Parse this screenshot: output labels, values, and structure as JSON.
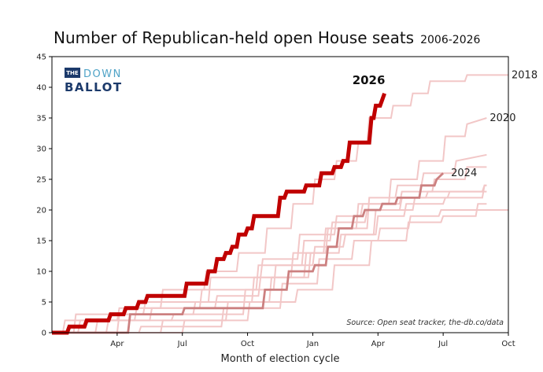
{
  "chart_data": {
    "type": "line",
    "title": "Number of Republican-held open House seats",
    "subtitle": "2006-2026",
    "xlabel": "Month of election cycle",
    "ylabel": "",
    "ylim": [
      0,
      45
    ],
    "yticks": [
      0,
      5,
      10,
      15,
      20,
      25,
      30,
      35,
      40,
      45
    ],
    "xlim": [
      0,
      21
    ],
    "xticks": [
      {
        "month": 3,
        "label": "Apr"
      },
      {
        "month": 6,
        "label": "Jul"
      },
      {
        "month": 9,
        "label": "Oct"
      },
      {
        "month": 12,
        "label": "Jan"
      },
      {
        "month": 15,
        "label": "Apr"
      },
      {
        "month": 18,
        "label": "Jul"
      },
      {
        "month": 21,
        "label": "Oct"
      }
    ],
    "grid": false,
    "source": "Source: Open seat tracker, the-db.co/data",
    "logo": {
      "the": "THE",
      "down": "DOWN",
      "ballot": "BALLOT"
    },
    "colors": {
      "highlight": "#c00000",
      "secondary": "#cc8080",
      "background_series": "#f2c7c7",
      "axis": "#000000"
    },
    "series": [
      {
        "name": "2026",
        "role": "highlight",
        "label": "2026",
        "x": [
          0,
          0.7,
          0.8,
          1.5,
          1.6,
          2.6,
          2.7,
          3.3,
          3.4,
          3.9,
          4.0,
          4.3,
          4.4,
          6.1,
          6.2,
          7.1,
          7.2,
          7.5,
          7.6,
          7.9,
          8.0,
          8.2,
          8.3,
          8.5,
          8.6,
          8.9,
          9.0,
          9.2,
          9.3,
          10.4,
          10.5,
          10.7,
          10.8,
          11.6,
          11.7,
          12.3,
          12.4,
          12.9,
          13.0,
          13.3,
          13.4,
          13.6,
          13.7,
          14.6,
          14.7,
          14.8,
          14.9,
          15.1,
          15.2,
          15.3
        ],
        "y": [
          0,
          0,
          1,
          1,
          2,
          2,
          3,
          3,
          4,
          4,
          5,
          5,
          6,
          6,
          8,
          8,
          10,
          10,
          12,
          12,
          13,
          13,
          14,
          14,
          16,
          16,
          17,
          17,
          19,
          19,
          22,
          22,
          23,
          23,
          24,
          24,
          26,
          26,
          27,
          27,
          28,
          28,
          31,
          31,
          35,
          35,
          37,
          37,
          38,
          39
        ]
      },
      {
        "name": "2024",
        "role": "secondary",
        "label": "2024",
        "x": [
          0,
          3.5,
          3.6,
          6.0,
          6.1,
          9.7,
          9.8,
          10.8,
          10.9,
          12.0,
          12.1,
          12.6,
          12.7,
          13.1,
          13.2,
          13.8,
          13.9,
          14.3,
          14.4,
          15.1,
          15.2,
          15.8,
          15.9,
          16.9,
          17.0,
          17.6,
          17.7,
          18.0
        ],
        "y": [
          0,
          0,
          3,
          3,
          4,
          4,
          7,
          7,
          10,
          10,
          11,
          11,
          14,
          14,
          17,
          17,
          19,
          19,
          20,
          20,
          21,
          21,
          22,
          22,
          24,
          24,
          25,
          26
        ]
      },
      {
        "name": "2018",
        "role": "background",
        "label": "2018",
        "x": [
          0,
          1.2,
          1.3,
          3.0,
          3.1,
          5.0,
          5.1,
          7.0,
          7.1,
          8.5,
          8.6,
          9.8,
          9.9,
          11.0,
          11.1,
          12.0,
          12.1,
          13.0,
          13.1,
          14.0,
          14.1,
          14.5,
          14.6,
          15.6,
          15.7,
          16.5,
          16.6,
          17.3,
          17.4,
          19.0,
          19.1,
          21.0
        ],
        "y": [
          0,
          0,
          2,
          2,
          4,
          4,
          7,
          7,
          10,
          10,
          13,
          13,
          17,
          17,
          21,
          21,
          25,
          25,
          28,
          28,
          31,
          31,
          35,
          35,
          37,
          37,
          39,
          39,
          41,
          41,
          42,
          42
        ]
      },
      {
        "name": "2020",
        "role": "background",
        "label": "2020",
        "x": [
          0,
          2.0,
          2.1,
          4.5,
          4.6,
          7.5,
          7.6,
          9.5,
          9.6,
          11.0,
          11.1,
          12.5,
          12.6,
          14.0,
          14.1,
          15.5,
          15.6,
          16.8,
          16.9,
          18.0,
          18.1,
          19.0,
          19.1,
          20.0
        ],
        "y": [
          0,
          0,
          2,
          2,
          4,
          4,
          6,
          6,
          9,
          9,
          13,
          13,
          17,
          17,
          21,
          21,
          25,
          25,
          28,
          28,
          32,
          32,
          34,
          35
        ]
      },
      {
        "name": "",
        "role": "background",
        "label": "",
        "x": [
          0,
          3.0,
          3.1,
          6.5,
          6.6,
          9.2,
          9.3,
          11.6,
          11.7,
          12.6,
          12.7,
          14.5,
          14.6,
          15.8,
          15.9,
          17.0,
          17.1,
          18.5,
          18.6,
          20.0
        ],
        "y": [
          0,
          0,
          3,
          3,
          5,
          5,
          9,
          9,
          13,
          13,
          17,
          17,
          22,
          22,
          24,
          24,
          26,
          26,
          28,
          29
        ]
      },
      {
        "name": "",
        "role": "background",
        "label": "",
        "x": [
          0,
          4.0,
          4.1,
          7.8,
          7.9,
          10.5,
          10.6,
          12.2,
          12.3,
          13.8,
          13.9,
          15.0,
          15.1,
          16.4,
          16.5,
          17.8,
          17.9,
          19.5,
          19.6,
          21.0
        ],
        "y": [
          0,
          0,
          1,
          1,
          4,
          4,
          8,
          8,
          12,
          12,
          15,
          15,
          17,
          17,
          19,
          19,
          20,
          20,
          20,
          20
        ]
      },
      {
        "name": "",
        "role": "background",
        "label": "",
        "x": [
          0,
          2.5,
          2.6,
          5.5,
          5.6,
          8.8,
          8.9,
          10.2,
          10.3,
          12.0,
          12.1,
          13.4,
          13.5,
          14.9,
          15.0,
          16.2,
          16.3,
          18.0,
          18.1,
          19.8,
          19.9,
          20.0
        ],
        "y": [
          0,
          0,
          2,
          2,
          3,
          3,
          7,
          7,
          11,
          11,
          14,
          14,
          16,
          16,
          19,
          19,
          21,
          21,
          22,
          22,
          24,
          24
        ]
      },
      {
        "name": "",
        "role": "background",
        "label": "",
        "x": [
          0,
          1.0,
          1.1,
          4.2,
          4.3,
          7.2,
          7.3,
          9.6,
          9.7,
          11.3,
          11.4,
          13.0,
          13.1,
          14.2,
          14.3,
          16.0,
          16.1,
          17.5,
          17.6,
          19.0,
          19.1,
          20.0
        ],
        "y": [
          0,
          0,
          3,
          3,
          5,
          5,
          9,
          9,
          12,
          12,
          16,
          16,
          19,
          19,
          21,
          21,
          23,
          23,
          25,
          25,
          27,
          27
        ]
      },
      {
        "name": "",
        "role": "background",
        "label": "",
        "x": [
          0,
          5.0,
          5.1,
          8.0,
          8.1,
          10.0,
          10.1,
          11.8,
          11.9,
          13.2,
          13.3,
          14.8,
          14.9,
          16.0,
          16.1,
          17.2,
          17.3,
          18.8,
          18.9,
          19.8,
          19.9,
          20.0
        ],
        "y": [
          0,
          0,
          2,
          2,
          5,
          5,
          9,
          9,
          13,
          13,
          16,
          16,
          20,
          20,
          22,
          22,
          23,
          23,
          23,
          23,
          24,
          24
        ]
      },
      {
        "name": "",
        "role": "background",
        "label": "",
        "x": [
          0,
          6.0,
          6.1,
          9.0,
          9.1,
          11.2,
          11.3,
          12.9,
          13.0,
          14.6,
          14.7,
          16.3,
          16.4,
          17.9,
          18.0,
          19.5,
          19.6,
          20.0
        ],
        "y": [
          0,
          0,
          2,
          2,
          5,
          5,
          7,
          7,
          11,
          11,
          15,
          15,
          18,
          18,
          19,
          19,
          21,
          21
        ]
      },
      {
        "name": "",
        "role": "background",
        "label": "",
        "x": [
          0,
          0.5,
          0.6,
          3.8,
          3.9,
          6.8,
          6.9,
          9.4,
          9.5,
          11.5,
          11.6,
          12.8,
          12.9,
          14.4,
          14.5,
          16.6,
          16.7,
          18.2,
          18.3,
          20.0
        ],
        "y": [
          0,
          0,
          2,
          2,
          4,
          4,
          7,
          7,
          11,
          11,
          15,
          15,
          18,
          18,
          20,
          20,
          22,
          22,
          23,
          23
        ]
      }
    ]
  }
}
